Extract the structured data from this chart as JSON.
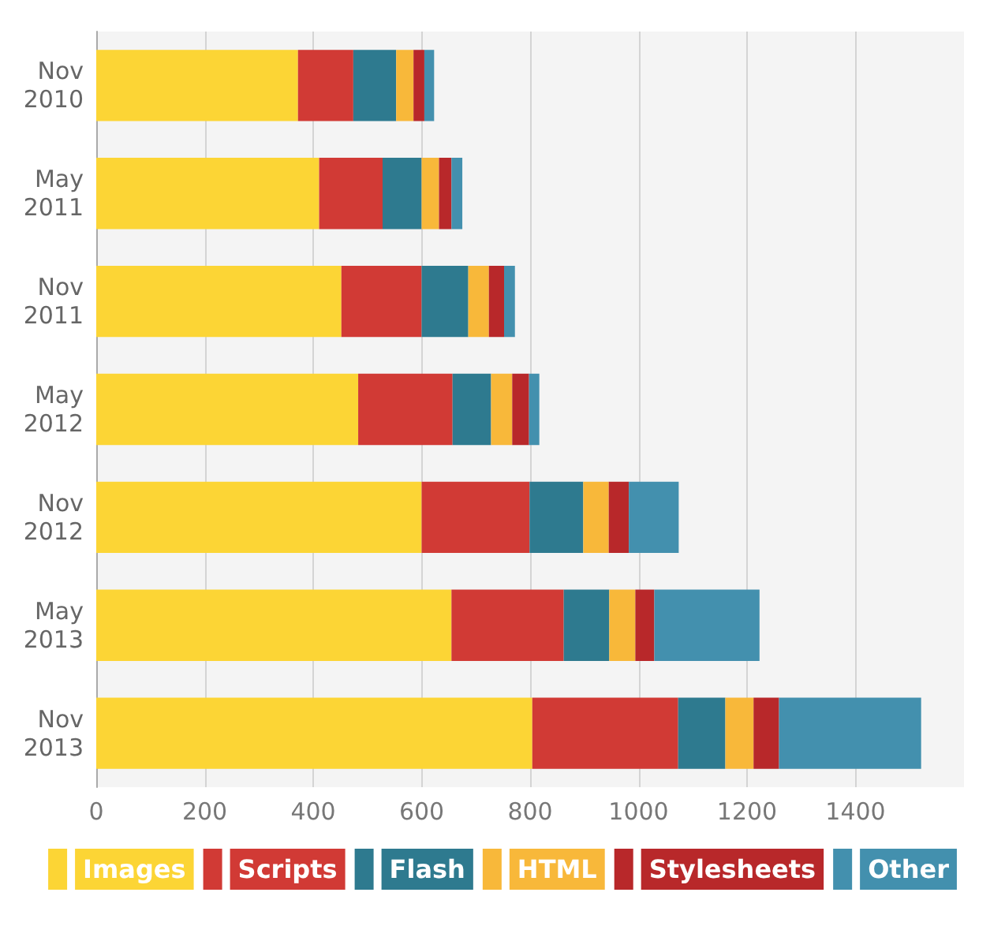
{
  "chart_data": {
    "type": "bar",
    "orientation": "horizontal",
    "stacked": true,
    "categories": [
      "Nov 2010",
      "May 2011",
      "Nov 2011",
      "May 2012",
      "Nov 2012",
      "May 2013",
      "Nov 2013"
    ],
    "series": [
      {
        "name": "Images",
        "color": "#fcd535",
        "values": [
          372,
          411,
          452,
          483,
          600,
          655,
          804
        ]
      },
      {
        "name": "Scripts",
        "color": "#d13a35",
        "values": [
          102,
          117,
          148,
          174,
          199,
          207,
          269
        ]
      },
      {
        "name": "Flash",
        "color": "#2e7a8f",
        "values": [
          79,
          72,
          86,
          71,
          99,
          84,
          87
        ]
      },
      {
        "name": "HTML",
        "color": "#f8b83a",
        "values": [
          32,
          32,
          38,
          39,
          47,
          48,
          52
        ]
      },
      {
        "name": "Stylesheets",
        "color": "#b8282a",
        "values": [
          20,
          23,
          28,
          31,
          37,
          35,
          47
        ]
      },
      {
        "name": "Other",
        "color": "#4390ae",
        "values": [
          18,
          20,
          20,
          19,
          92,
          194,
          262
        ]
      }
    ],
    "xlim": [
      0,
      1600
    ],
    "xticks": [
      0,
      200,
      400,
      600,
      800,
      1000,
      1200,
      1400
    ],
    "grid": "x",
    "legend": "bottom"
  }
}
